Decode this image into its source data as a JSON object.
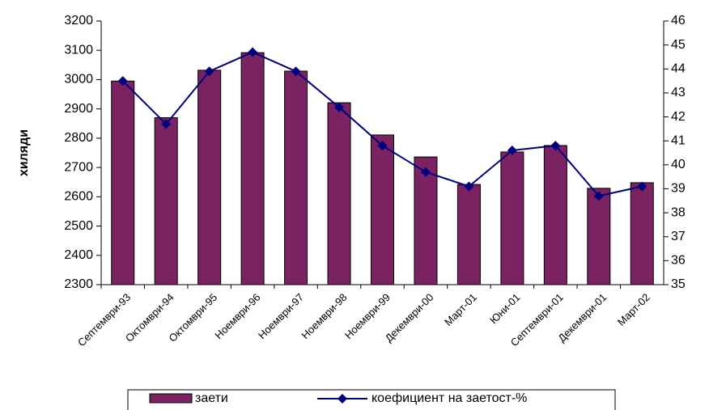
{
  "chart_data": {
    "type": "combo",
    "y_label": "хиляди",
    "categories": [
      "Септември-93",
      "Октомври-94",
      "Октомври-95",
      "Ноември-96",
      "Ноември-97",
      "Ноември-98",
      "Ноември-99",
      "Декември-00",
      "Март-01",
      "Юни-01",
      "Септември-01",
      "Декември-01",
      "Март-02"
    ],
    "series": [
      {
        "name": "заети",
        "type": "bar",
        "color": "#7b2262",
        "values": [
          2995,
          2870,
          3032,
          3092,
          3029,
          2921,
          2811,
          2736,
          2642,
          2753,
          2775,
          2629,
          2648
        ]
      },
      {
        "name": "коефициент на заетост-%",
        "type": "line",
        "axis": "y2",
        "color": "#000080",
        "values": [
          43.5,
          41.7,
          43.9,
          44.7,
          43.9,
          42.4,
          40.8,
          39.7,
          39.1,
          40.6,
          40.8,
          38.7,
          39.1
        ]
      }
    ],
    "ylim": [
      2300,
      3200
    ],
    "yticks": [
      2300,
      2400,
      2500,
      2600,
      2700,
      2800,
      2900,
      3000,
      3100,
      3200
    ],
    "y2lim": [
      35,
      46
    ],
    "y2ticks": [
      35,
      36,
      37,
      38,
      39,
      40,
      41,
      42,
      43,
      44,
      45,
      46
    ],
    "grid": false,
    "legend": "bottom"
  }
}
